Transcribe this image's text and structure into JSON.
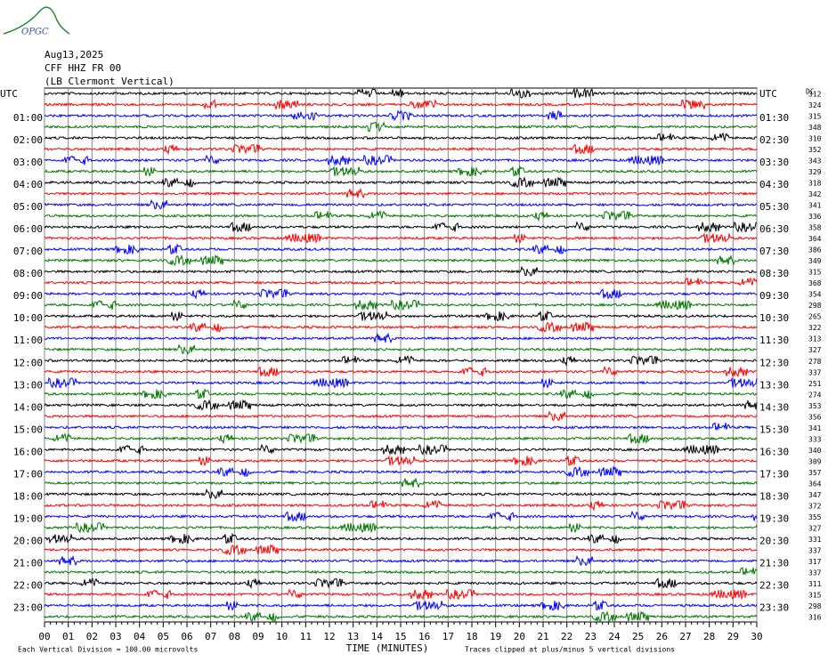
{
  "header": {
    "logo": "OPGC",
    "date": "Aug13,2025",
    "station": "CFF HHZ FR 00",
    "location": "(LB Clermont Vertical)"
  },
  "plot": {
    "trace_colors": [
      "#000000",
      "#ff0000",
      "#0000ff",
      "#007700"
    ],
    "left_labels": [
      "UTC",
      "01:00",
      "02:00",
      "03:00",
      "04:00",
      "05:00",
      "06:00",
      "07:00",
      "08:00",
      "09:00",
      "10:00",
      "11:00",
      "12:00",
      "13:00",
      "14:00",
      "15:00",
      "16:00",
      "17:00",
      "18:00",
      "19:00",
      "20:00",
      "21:00",
      "22:00",
      "23:00"
    ],
    "right_labels": [
      "UTC",
      "01:30",
      "02:30",
      "03:30",
      "04:30",
      "05:30",
      "06:30",
      "07:30",
      "08:30",
      "09:30",
      "10:30",
      "11:30",
      "12:30",
      "13:30",
      "14:30",
      "15:30",
      "16:30",
      "17:30",
      "18:30",
      "19:30",
      "20:30",
      "21:30",
      "22:30",
      "23:30"
    ],
    "dc_header": "DC",
    "dc_values": [
      312,
      324,
      315,
      348,
      310,
      352,
      343,
      329,
      318,
      342,
      341,
      336,
      358,
      364,
      386,
      349,
      315,
      368,
      354,
      298,
      265,
      322,
      313,
      327,
      278,
      337,
      251,
      274,
      353,
      356,
      341,
      333,
      340,
      309,
      357,
      364,
      347,
      372,
      355,
      327,
      331,
      337,
      317,
      337,
      311,
      315,
      298,
      316
    ],
    "x_label": "TIME (MINUTES)",
    "xlim": [
      0,
      30
    ],
    "xticks": [
      {
        "value": 0,
        "label": "00"
      },
      {
        "value": 1,
        "label": "01"
      },
      {
        "value": 2,
        "label": "02"
      },
      {
        "value": 3,
        "label": "03"
      },
      {
        "value": 4,
        "label": "04"
      },
      {
        "value": 5,
        "label": "05"
      },
      {
        "value": 6,
        "label": "06"
      },
      {
        "value": 7,
        "label": "07"
      },
      {
        "value": 8,
        "label": "08"
      },
      {
        "value": 9,
        "label": "09"
      },
      10,
      11,
      12,
      13,
      14,
      15,
      16,
      17,
      18,
      19,
      20,
      21,
      22,
      23,
      24,
      25,
      26,
      27,
      28,
      29,
      30
    ]
  },
  "footer": {
    "scale_note": "Each Vertical Division =  100.00 microvolts",
    "clip_note": "Traces clipped at plus/minus 5 vertical divisions"
  }
}
